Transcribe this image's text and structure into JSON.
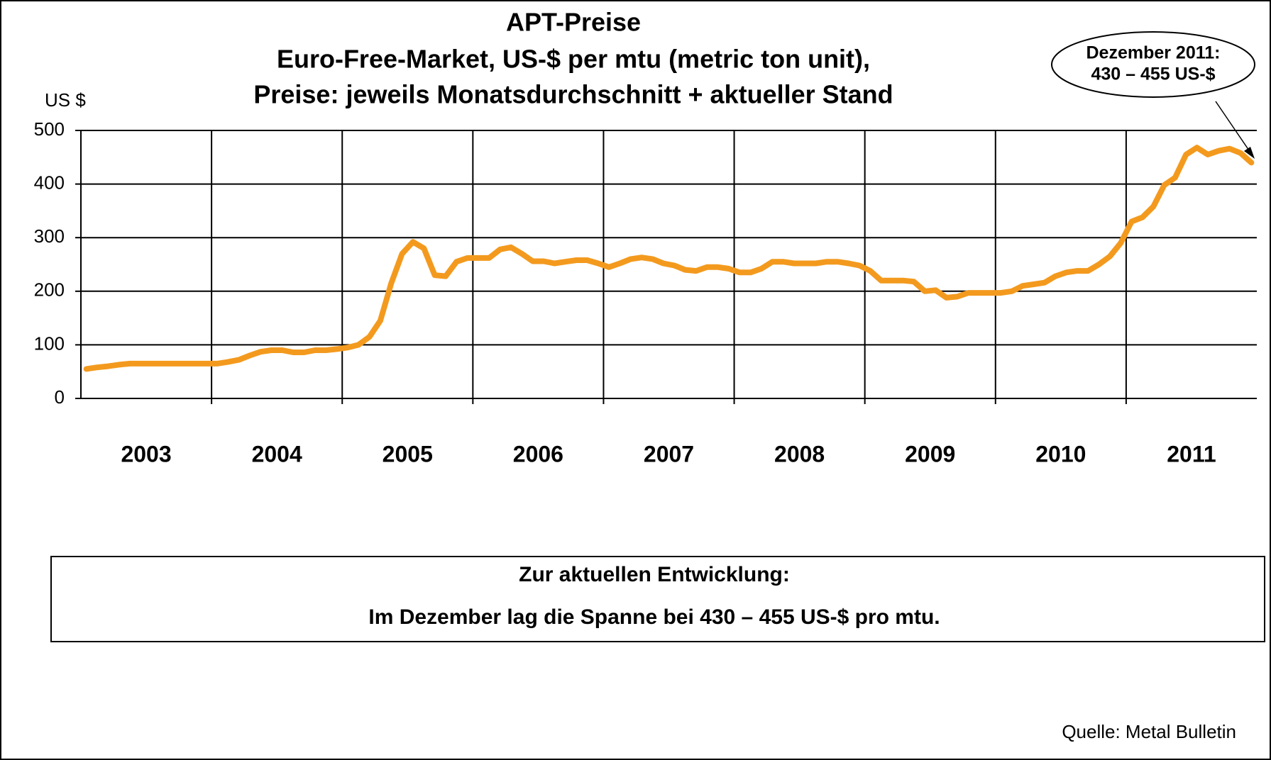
{
  "chart_data": {
    "type": "line",
    "title": [
      "APT-Preise",
      "Euro-Free-Market, US-$ per mtu (metric ton unit),",
      "Preise: jeweils Monatsdurchschnitt + aktueller Stand"
    ],
    "y_label": "US $",
    "annotation": [
      "Dezember 2011:",
      "430 – 455 US-$"
    ],
    "categories": [
      null,
      null,
      null,
      null,
      null,
      "2003",
      null,
      null,
      null,
      null,
      null,
      null,
      null,
      null,
      null,
      null,
      null,
      "2004",
      null,
      null,
      null,
      null,
      null,
      null,
      null,
      null,
      null,
      null,
      null,
      "2005",
      null,
      null,
      null,
      null,
      null,
      null,
      null,
      null,
      null,
      null,
      null,
      "2006",
      null,
      null,
      null,
      null,
      null,
      null,
      null,
      null,
      null,
      null,
      null,
      "2007",
      null,
      null,
      null,
      null,
      null,
      null,
      null,
      null,
      null,
      null,
      null,
      "2008",
      null,
      null,
      null,
      null,
      null,
      null,
      null,
      null,
      null,
      null,
      null,
      "2009",
      null,
      null,
      null,
      null,
      null,
      null,
      null,
      null,
      null,
      null,
      null,
      "2010",
      null,
      null,
      null,
      null,
      null,
      null,
      null,
      null,
      null,
      null,
      null,
      "2011",
      null,
      null,
      null,
      null,
      null,
      null
    ],
    "series": [
      {
        "color": "#f39a1e",
        "values": [
          55,
          58,
          60,
          63,
          65,
          65,
          65,
          65,
          65,
          65,
          65,
          65,
          65,
          68,
          72,
          80,
          87,
          90,
          90,
          86,
          86,
          90,
          90,
          92,
          95,
          100,
          115,
          145,
          215,
          270,
          292,
          280,
          230,
          228,
          255,
          262,
          262,
          262,
          278,
          282,
          270,
          256,
          256,
          252,
          255,
          258,
          258,
          252,
          245,
          252,
          260,
          263,
          260,
          252,
          248,
          240,
          238,
          245,
          245,
          242,
          235,
          235,
          242,
          255,
          255,
          252,
          252,
          252,
          255,
          255,
          252,
          248,
          238,
          220,
          220,
          220,
          218,
          200,
          202,
          188,
          190,
          197,
          197,
          197,
          197,
          200,
          210,
          213,
          216,
          228,
          235,
          238,
          238,
          250,
          265,
          290,
          330,
          338,
          358,
          398,
          412,
          455,
          468,
          455,
          462,
          466,
          458,
          440
        ]
      }
    ],
    "ylim": [
      0,
      500
    ],
    "yticks": [
      0,
      100,
      200,
      300,
      400,
      500
    ],
    "grid": true,
    "note": {
      "heading": "Zur aktuellen Entwicklung:",
      "text": "Im Dezember lag die Spanne bei 430  – 455 US-$ pro mtu."
    },
    "source": "Quelle: Metal Bulletin"
  }
}
